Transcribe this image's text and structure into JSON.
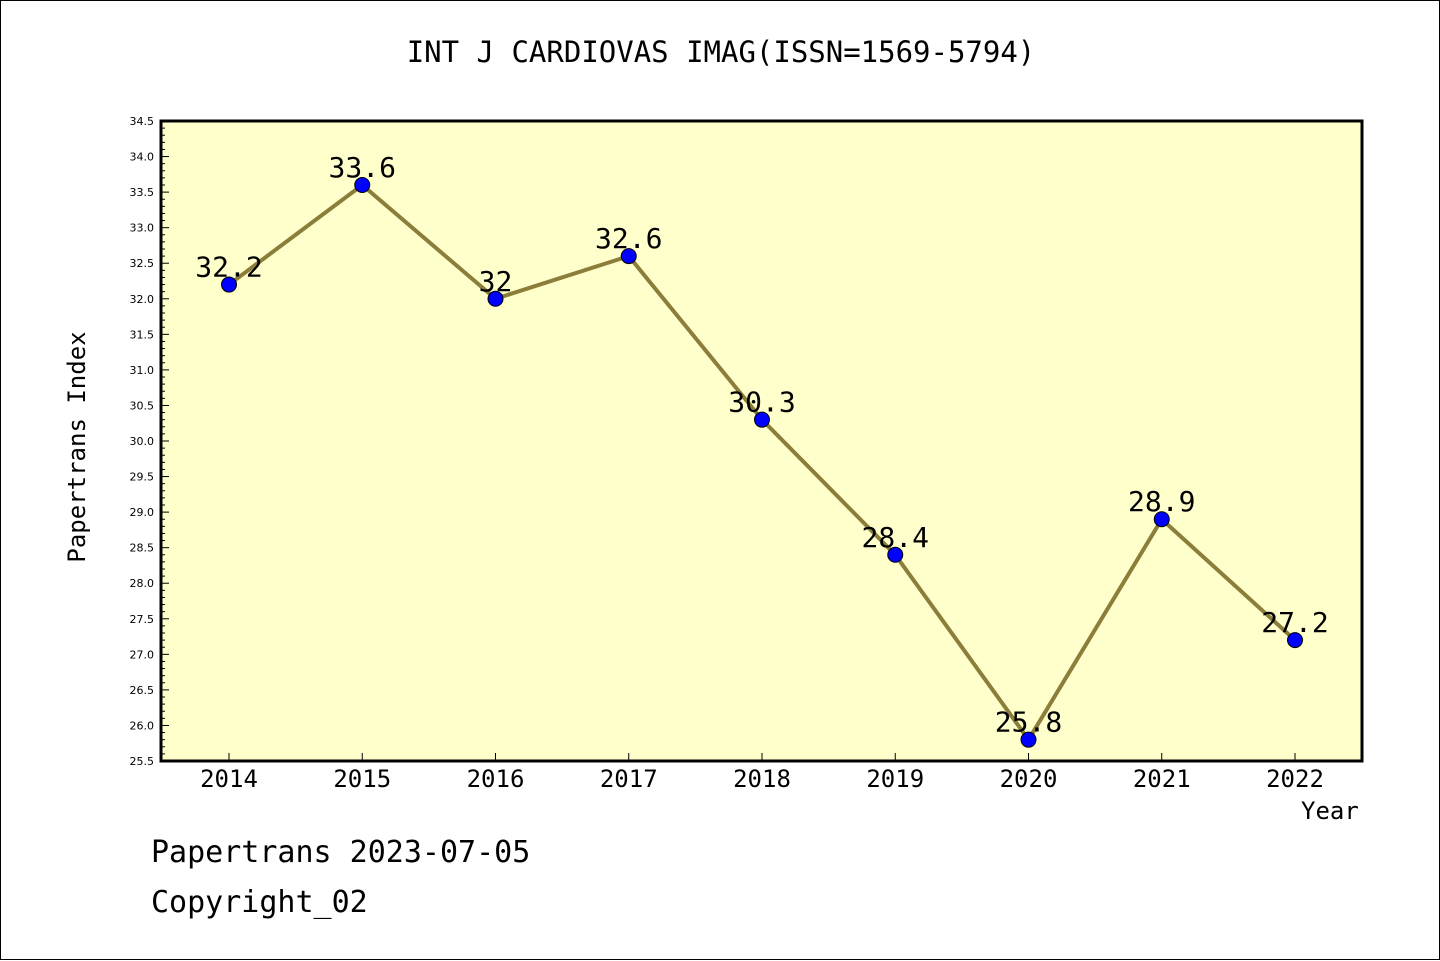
{
  "chart_data": {
    "type": "line",
    "title": "INT J CARDIOVAS IMAG(ISSN=1569-5794)",
    "xlabel": "Year",
    "ylabel": "Papertrans Index",
    "categories": [
      "2014",
      "2015",
      "2016",
      "2017",
      "2018",
      "2019",
      "2020",
      "2021",
      "2022"
    ],
    "values": [
      32.2,
      33.6,
      32,
      32.6,
      30.3,
      28.4,
      25.8,
      28.9,
      27.2
    ],
    "data_labels": [
      "32.2",
      "33.6",
      "32",
      "32.6",
      "30.3",
      "28.4",
      "25.8",
      "28.9",
      "27.2"
    ],
    "ylim": [
      25.5,
      34.5
    ],
    "yticks": [
      "25.5",
      "26.0",
      "26.5",
      "27.0",
      "27.5",
      "28.0",
      "28.5",
      "29.0",
      "29.5",
      "30.0",
      "30.5",
      "31.0",
      "31.5",
      "32.0",
      "32.5",
      "33.0",
      "33.5",
      "34.0",
      "34.5"
    ],
    "grid": false,
    "colors": {
      "plot_background": "#ffffcc",
      "line": "#8b7d3a",
      "marker": "#0000ff"
    }
  },
  "footer": {
    "line1": "Papertrans 2023-07-05",
    "line2": "Copyright_02"
  }
}
